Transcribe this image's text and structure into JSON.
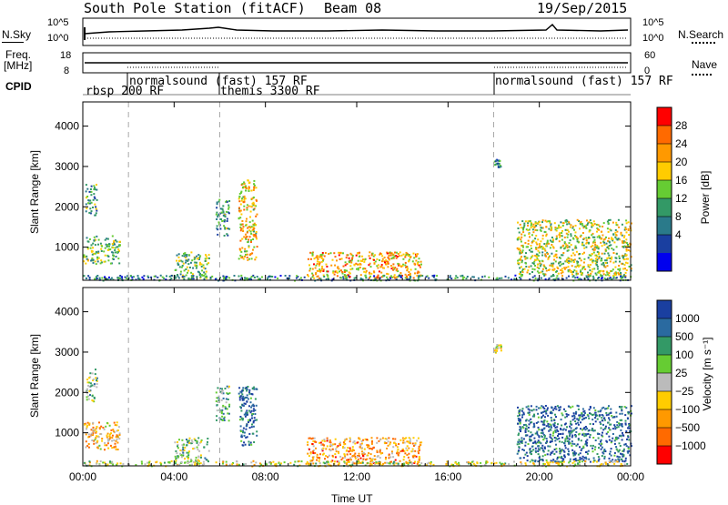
{
  "header": {
    "station": "South Pole Station (fitACF)",
    "beam": "Beam 08",
    "date": "19/Sep/2015"
  },
  "sky_panel": {
    "left_label": "N.Sky",
    "right_label": "N.Search",
    "left_ticks": [
      "10^5",
      "10^0"
    ],
    "right_ticks": [
      "10^5",
      "10^0"
    ]
  },
  "freq_panel": {
    "left_label_1": "Freq.",
    "left_label_2": "[MHz]",
    "right_label": "Nave",
    "left_ticks": [
      "18",
      "8"
    ],
    "right_ticks": [
      "60",
      "0"
    ]
  },
  "cpid": {
    "label": "CPID",
    "segments": [
      {
        "text": "rbsp 200 RF"
      },
      {
        "text": "normalsound (fast) 157 RF"
      },
      {
        "text": "themis 3300 RF"
      },
      {
        "text": "normalsound (fast) 157 RF"
      }
    ]
  },
  "power_colorbar": {
    "label": "Power [dB]",
    "ticks": [
      "28",
      "24",
      "20",
      "16",
      "12",
      "8",
      "4"
    ],
    "colors": [
      "#ff0000",
      "#ff6a00",
      "#ff9900",
      "#ffcc00",
      "#66cc33",
      "#339966",
      "#2a7a8a",
      "#1a3fa0",
      "#0000ee"
    ]
  },
  "velocity_colorbar": {
    "label": "Velocity [m s⁻¹]",
    "ticks": [
      "1000",
      "500",
      "100",
      "25",
      "−25",
      "−100",
      "−500",
      "−1000"
    ],
    "colors": [
      "#1a3fa0",
      "#2a6aa0",
      "#339966",
      "#66cc33",
      "#bbbbbb",
      "#ffcc00",
      "#ff9900",
      "#ff6a00",
      "#ff0000"
    ]
  },
  "chart_data": [
    {
      "type": "heatmap",
      "title": "Power",
      "xlabel": "",
      "ylabel": "Slant Range [km]",
      "x_ticks": [
        "00:00",
        "04:00",
        "08:00",
        "12:00",
        "16:00",
        "20:00",
        "00:00"
      ],
      "y_ticks": [
        "4000",
        "3000",
        "2000",
        "1000"
      ],
      "ylim": [
        180,
        4600
      ],
      "xlim_hours": [
        0,
        24
      ],
      "dashed_lines_hours": [
        2,
        6,
        18
      ],
      "scatter_regions": [
        {
          "t0": 0.0,
          "t1": 1.6,
          "r0": 600,
          "r1": 1300,
          "level": 0.45
        },
        {
          "t0": 0.1,
          "t1": 0.6,
          "r0": 1800,
          "r1": 2600,
          "level": 0.4
        },
        {
          "t0": 4.0,
          "t1": 5.5,
          "r0": 250,
          "r1": 900,
          "level": 0.45
        },
        {
          "t0": 5.8,
          "t1": 6.4,
          "r0": 1300,
          "r1": 2200,
          "level": 0.35
        },
        {
          "t0": 6.8,
          "t1": 7.6,
          "r0": 700,
          "r1": 2700,
          "level": 0.65
        },
        {
          "t0": 9.8,
          "t1": 14.8,
          "r0": 250,
          "r1": 900,
          "level": 0.7
        },
        {
          "t0": 18.0,
          "t1": 18.3,
          "r0": 3000,
          "r1": 3200,
          "level": 0.3
        },
        {
          "t0": 19.0,
          "t1": 24.0,
          "r0": 300,
          "r1": 1700,
          "level": 0.55
        },
        {
          "t0": 0.0,
          "t1": 24.0,
          "r0": 190,
          "r1": 320,
          "level": 0.3
        }
      ]
    },
    {
      "type": "heatmap",
      "title": "Velocity",
      "xlabel": "Time UT",
      "ylabel": "Slant Range [km]",
      "x_ticks": [
        "00:00",
        "04:00",
        "08:00",
        "12:00",
        "16:00",
        "20:00",
        "00:00"
      ],
      "y_ticks": [
        "4000",
        "3000",
        "2000",
        "1000"
      ],
      "ylim": [
        180,
        4600
      ],
      "xlim_hours": [
        0,
        24
      ],
      "dashed_lines_hours": [
        2,
        6,
        18
      ],
      "scatter_regions": [
        {
          "t0": 0.0,
          "t1": 1.6,
          "r0": 600,
          "r1": 1300,
          "level": 0.35
        },
        {
          "t0": 0.1,
          "t1": 0.6,
          "r0": 1800,
          "r1": 2600,
          "level": 0.6
        },
        {
          "t0": 4.0,
          "t1": 5.5,
          "r0": 250,
          "r1": 900,
          "level": 0.6
        },
        {
          "t0": 5.8,
          "t1": 6.4,
          "r0": 1300,
          "r1": 2200,
          "level": 0.65
        },
        {
          "t0": 6.8,
          "t1": 7.6,
          "r0": 700,
          "r1": 2200,
          "level": 0.85
        },
        {
          "t0": 9.8,
          "t1": 14.8,
          "r0": 250,
          "r1": 900,
          "level": 0.3
        },
        {
          "t0": 18.0,
          "t1": 18.3,
          "r0": 3000,
          "r1": 3200,
          "level": 0.45
        },
        {
          "t0": 19.0,
          "t1": 24.0,
          "r0": 300,
          "r1": 1700,
          "level": 0.85
        },
        {
          "t0": 0.0,
          "t1": 24.0,
          "r0": 190,
          "r1": 320,
          "level": 0.5
        }
      ]
    }
  ]
}
